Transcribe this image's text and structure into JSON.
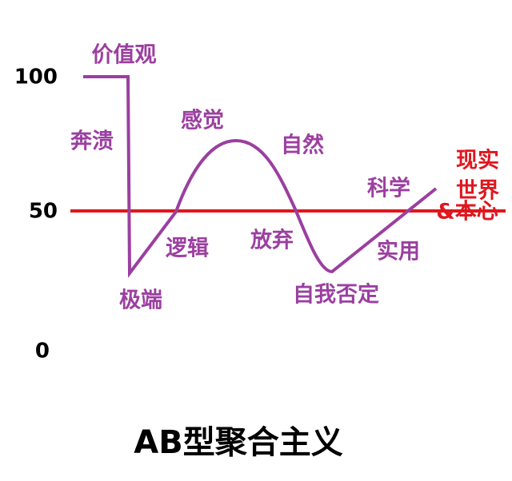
{
  "title": "AB型聚合主义",
  "y_axis": {
    "labels": [
      100,
      50,
      0
    ]
  },
  "curve_labels": [
    "价值观",
    "奔溃",
    "感觉",
    "自然",
    "科学",
    "逻辑",
    "放弃",
    "实用",
    "极端",
    "自我否定"
  ],
  "reference_labels": [
    "现实",
    "世界",
    "&本心"
  ]
}
